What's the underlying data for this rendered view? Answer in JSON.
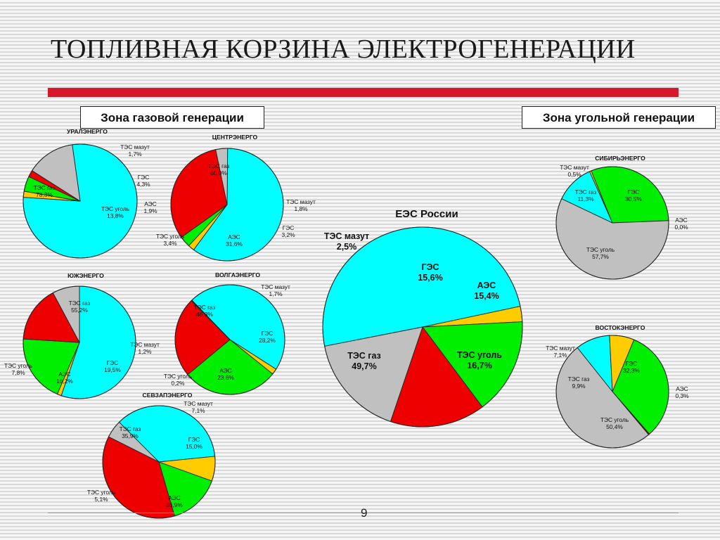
{
  "title": "ТОПЛИВНАЯ КОРЗИНА ЭЛЕКТРОГЕНЕРАЦИИ",
  "zones": {
    "gas": "Зона газовой генерации",
    "coal": "Зона угольной генерации"
  },
  "page_number": "9",
  "colors": {
    "ТЭС газ": "#00ffff",
    "ТЭС мазут": "#ffcc00",
    "ГЭС": "#00ee00",
    "АЭС": "#ee0000",
    "ТЭС уголь": "#c0c0c0"
  },
  "chart_data": [
    {
      "type": "pie",
      "title": "УРАЛЭНЕРГО",
      "zone": "gas",
      "slices": [
        {
          "label": "ТЭС газ",
          "value": 78.3,
          "text": "78,3%"
        },
        {
          "label": "ТЭС мазут",
          "value": 1.7,
          "text": "1,7%"
        },
        {
          "label": "ГЭС",
          "value": 4.3,
          "text": "4,3%"
        },
        {
          "label": "АЭС",
          "value": 1.9,
          "text": "1,9%"
        },
        {
          "label": "ТЭС уголь",
          "value": 13.8,
          "text": "13,8%"
        }
      ]
    },
    {
      "type": "pie",
      "title": "ЦЕНТРЭНЕРГО",
      "zone": "gas",
      "slices": [
        {
          "label": "ТЭС газ",
          "value": 60.0,
          "text": "60,0%"
        },
        {
          "label": "ТЭС мазут",
          "value": 1.8,
          "text": "1,8%"
        },
        {
          "label": "ГЭС",
          "value": 3.2,
          "text": "3,2%"
        },
        {
          "label": "АЭС",
          "value": 31.6,
          "text": "31,6%"
        },
        {
          "label": "ТЭС уголь",
          "value": 3.4,
          "text": "3,4%"
        }
      ]
    },
    {
      "type": "pie",
      "title": "ЮЖЭНЕРГО",
      "zone": "gas",
      "slices": [
        {
          "label": "ТЭС газ",
          "value": 55.2,
          "text": "55,2%"
        },
        {
          "label": "ТЭС мазут",
          "value": 1.2,
          "text": "1,2%"
        },
        {
          "label": "ГЭС",
          "value": 19.5,
          "text": "19,5%"
        },
        {
          "label": "АЭС",
          "value": 16.2,
          "text": "16,2%"
        },
        {
          "label": "ТЭС уголь",
          "value": 7.8,
          "text": "7,8%"
        }
      ]
    },
    {
      "type": "pie",
      "title": "ВОЛГАЭНЕРГО",
      "zone": "gas",
      "slices": [
        {
          "label": "ТЭС газ",
          "value": 46.3,
          "text": "46,3%"
        },
        {
          "label": "ТЭС мазут",
          "value": 1.7,
          "text": "1,7%"
        },
        {
          "label": "ГЭС",
          "value": 28.2,
          "text": "28,2%"
        },
        {
          "label": "АЭС",
          "value": 23.6,
          "text": "23,6%"
        },
        {
          "label": "ТЭС уголь",
          "value": 0.2,
          "text": "0,2%"
        }
      ]
    },
    {
      "type": "pie",
      "title": "СЕВЗАПЭНЕРГО",
      "zone": "gas",
      "slices": [
        {
          "label": "ТЭС газ",
          "value": 35.9,
          "text": "35,9%"
        },
        {
          "label": "ТЭС мазут",
          "value": 7.1,
          "text": "7,1%"
        },
        {
          "label": "ГЭС",
          "value": 15.0,
          "text": "15,0%"
        },
        {
          "label": "АЭС",
          "value": 36.9,
          "text": "36,9%"
        },
        {
          "label": "ТЭС уголь",
          "value": 5.1,
          "text": "5,1%"
        }
      ]
    },
    {
      "type": "pie",
      "title": "ЕЭС России",
      "zone": "total",
      "slices": [
        {
          "label": "ТЭС мазут",
          "value": 2.5,
          "text": "2,5%"
        },
        {
          "label": "ГЭС",
          "value": 15.6,
          "text": "15,6%"
        },
        {
          "label": "АЭС",
          "value": 15.4,
          "text": "15,4%"
        },
        {
          "label": "ТЭС уголь",
          "value": 16.7,
          "text": "16,7%"
        },
        {
          "label": "ТЭС газ",
          "value": 49.7,
          "text": "49,7%"
        }
      ]
    },
    {
      "type": "pie",
      "title": "СИБИРЬЭНЕРГО",
      "zone": "coal",
      "slices": [
        {
          "label": "ТЭС газ",
          "value": 11.3,
          "text": "11,3%"
        },
        {
          "label": "ТЭС мазут",
          "value": 0.5,
          "text": "0,5%"
        },
        {
          "label": "ГЭС",
          "value": 30.5,
          "text": "30,5%"
        },
        {
          "label": "АЭС",
          "value": 0.0,
          "text": "0,0%"
        },
        {
          "label": "ТЭС уголь",
          "value": 57.7,
          "text": "57,7%"
        }
      ]
    },
    {
      "type": "pie",
      "title": "ВОСТОКЭНЕРГО",
      "zone": "coal",
      "slices": [
        {
          "label": "ТЭС газ",
          "value": 9.9,
          "text": "9,9%"
        },
        {
          "label": "ТЭС мазут",
          "value": 7.1,
          "text": "7,1%"
        },
        {
          "label": "ГЭС",
          "value": 32.3,
          "text": "32,3%"
        },
        {
          "label": "АЭС",
          "value": 0.3,
          "text": "0,3%"
        },
        {
          "label": "ТЭС уголь",
          "value": 50.4,
          "text": "50,4%"
        }
      ]
    }
  ]
}
